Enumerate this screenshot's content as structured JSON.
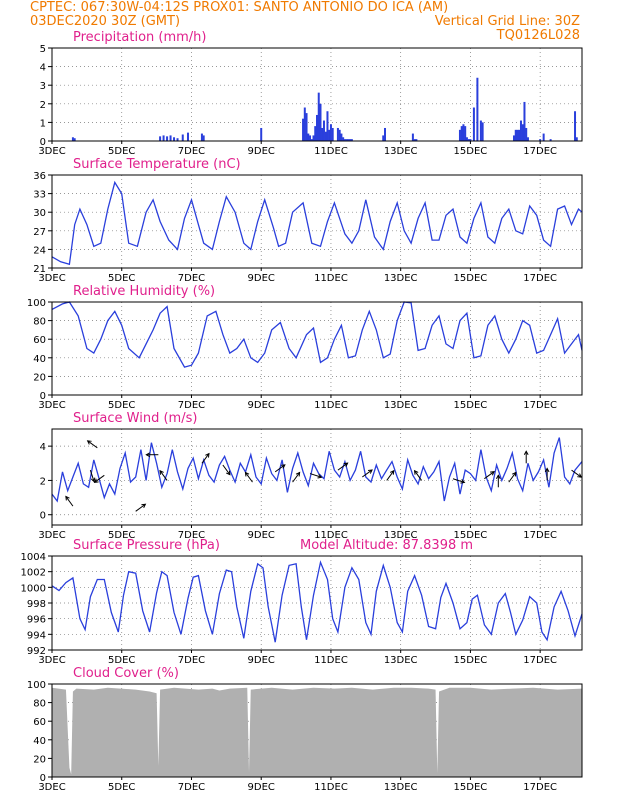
{
  "header": {
    "line1_left": "CPTEC:  067:30W-04:12S  PROX01: SANTO ANTONIO DO ICA (AM)",
    "line2_left": "03DEC2020 30Z (GMT)",
    "line2_right": "Vertical Grid Line: 30Z",
    "line3_right": "TQ0126L028",
    "color": "#f07a00"
  },
  "colors": {
    "series": "#2a3fdc",
    "title": "#e0208c",
    "cloud": "#b0b0b0",
    "arrow": "#000000"
  },
  "x_tick_labels": [
    "3DEC",
    "5DEC",
    "7DEC",
    "9DEC",
    "11DEC",
    "13DEC",
    "15DEC",
    "17DEC"
  ],
  "chart_data": [
    {
      "id": "precip",
      "type": "bar",
      "title": "Precipitation (mm/h)",
      "xlim": [
        0,
        15.2
      ],
      "ylim": [
        0,
        5
      ],
      "yticks": [
        0,
        1,
        2,
        3,
        4,
        5
      ],
      "x": [
        0.6,
        0.65,
        3.1,
        3.2,
        3.3,
        3.4,
        3.5,
        3.6,
        3.75,
        3.9,
        4.3,
        4.35,
        6.0,
        7.2,
        7.25,
        7.3,
        7.35,
        7.4,
        7.45,
        7.5,
        7.55,
        7.6,
        7.65,
        7.7,
        7.75,
        7.8,
        7.85,
        7.9,
        7.95,
        8.0,
        8.05,
        8.2,
        8.25,
        8.3,
        8.35,
        8.4,
        8.45,
        8.5,
        8.55,
        8.6,
        9.5,
        9.55,
        10.35,
        10.4,
        10.45,
        11.7,
        11.75,
        11.8,
        11.85,
        11.9,
        11.95,
        12.0,
        12.1,
        12.2,
        12.3,
        12.35,
        13.25,
        13.3,
        13.35,
        13.4,
        13.45,
        13.5,
        13.55,
        13.6,
        13.65,
        14.0,
        14.1,
        14.3,
        15.0,
        15.05
      ],
      "values": [
        0.2,
        0.15,
        0.25,
        0.3,
        0.25,
        0.3,
        0.2,
        0.15,
        0.35,
        0.45,
        0.4,
        0.3,
        0.7,
        1.2,
        1.8,
        1.5,
        0.4,
        0.3,
        0.1,
        0.3,
        0.8,
        1.4,
        2.6,
        2.0,
        0.7,
        1.1,
        0.5,
        1.6,
        0.6,
        0.9,
        0.7,
        0.7,
        0.6,
        0.4,
        0.2,
        0.1,
        0.1,
        0.1,
        0.1,
        0.1,
        0.3,
        0.7,
        0.4,
        0.1,
        0.1,
        0.6,
        0.8,
        0.9,
        0.8,
        0.2,
        0.1,
        0.1,
        1.8,
        3.4,
        1.1,
        1.0,
        0.3,
        0.6,
        0.6,
        0.6,
        1.1,
        0.9,
        2.1,
        0.7,
        0.2,
        0.1,
        0.4,
        0.1,
        1.6,
        0.2
      ]
    },
    {
      "id": "temp",
      "type": "line",
      "title": "Surface Temperature (nC)",
      "xlim": [
        0,
        15.2
      ],
      "ylim": [
        21,
        36
      ],
      "yticks": [
        21,
        24,
        27,
        30,
        33,
        36
      ],
      "x": [
        0,
        0.25,
        0.5,
        0.65,
        0.8,
        1.0,
        1.2,
        1.4,
        1.6,
        1.8,
        2.0,
        2.2,
        2.45,
        2.7,
        2.9,
        3.1,
        3.35,
        3.6,
        3.8,
        4.0,
        4.2,
        4.35,
        4.6,
        4.8,
        5.0,
        5.25,
        5.5,
        5.7,
        5.9,
        6.1,
        6.35,
        6.5,
        6.7,
        6.9,
        7.2,
        7.45,
        7.7,
        7.9,
        8.1,
        8.4,
        8.6,
        8.8,
        9.0,
        9.25,
        9.5,
        9.7,
        9.9,
        10.1,
        10.3,
        10.5,
        10.7,
        10.9,
        11.1,
        11.3,
        11.5,
        11.7,
        11.9,
        12.1,
        12.3,
        12.5,
        12.7,
        12.9,
        13.1,
        13.3,
        13.5,
        13.7,
        13.9,
        14.1,
        14.3,
        14.5,
        14.7,
        14.9,
        15.1,
        15.2
      ],
      "values": [
        22.8,
        22.0,
        21.6,
        28.0,
        30.5,
        28.0,
        24.5,
        25.0,
        30.5,
        34.8,
        33.0,
        25.0,
        24.5,
        30.0,
        32.0,
        28.5,
        25.5,
        24.0,
        29.0,
        32.0,
        28.0,
        25.0,
        24.0,
        28.5,
        32.5,
        30.0,
        25.0,
        24.0,
        28.5,
        32.0,
        27.5,
        24.5,
        25.0,
        30.0,
        31.5,
        25.0,
        24.5,
        28.5,
        31.5,
        26.5,
        25.0,
        27.0,
        32.0,
        26.0,
        24.0,
        28.5,
        31.5,
        27.0,
        25.0,
        29.0,
        31.5,
        25.5,
        25.5,
        29.5,
        30.5,
        26.0,
        25.0,
        29.0,
        31.5,
        26.0,
        25.0,
        29.0,
        30.5,
        27.0,
        26.5,
        31.0,
        29.5,
        25.5,
        24.5,
        30.5,
        31.0,
        28.0,
        30.5,
        30.0
      ]
    },
    {
      "id": "rh",
      "type": "line",
      "title": "Relative Humidity (%)",
      "xlim": [
        0,
        15.2
      ],
      "ylim": [
        0,
        100
      ],
      "yticks": [
        0,
        20,
        40,
        60,
        80,
        100
      ],
      "x": [
        0,
        0.3,
        0.5,
        0.75,
        1.0,
        1.2,
        1.4,
        1.6,
        1.8,
        2.0,
        2.2,
        2.5,
        2.7,
        2.9,
        3.1,
        3.3,
        3.5,
        3.8,
        4.0,
        4.2,
        4.45,
        4.7,
        4.9,
        5.1,
        5.3,
        5.5,
        5.7,
        5.9,
        6.1,
        6.3,
        6.55,
        6.8,
        7.0,
        7.3,
        7.5,
        7.7,
        7.9,
        8.1,
        8.3,
        8.5,
        8.7,
        8.9,
        9.1,
        9.3,
        9.5,
        9.7,
        9.9,
        10.1,
        10.3,
        10.5,
        10.7,
        10.9,
        11.1,
        11.3,
        11.5,
        11.7,
        11.9,
        12.1,
        12.3,
        12.5,
        12.7,
        12.9,
        13.1,
        13.3,
        13.5,
        13.7,
        13.9,
        14.1,
        14.3,
        14.5,
        14.7,
        14.9,
        15.1,
        15.2
      ],
      "values": [
        92,
        98,
        100,
        85,
        50,
        45,
        60,
        80,
        90,
        75,
        50,
        40,
        55,
        70,
        88,
        95,
        50,
        30,
        32,
        45,
        85,
        90,
        65,
        45,
        50,
        60,
        40,
        35,
        45,
        70,
        78,
        50,
        40,
        65,
        72,
        35,
        40,
        60,
        75,
        40,
        42,
        70,
        90,
        70,
        40,
        44,
        80,
        100,
        99,
        48,
        50,
        75,
        85,
        55,
        50,
        80,
        88,
        40,
        42,
        75,
        85,
        60,
        45,
        60,
        80,
        75,
        45,
        48,
        65,
        82,
        45,
        55,
        65,
        48
      ]
    },
    {
      "id": "wind",
      "type": "line",
      "title": "Surface Wind (m/s)",
      "xlim": [
        0,
        15.2
      ],
      "ylim": [
        0,
        5
      ],
      "yticks": [
        0,
        2,
        4
      ],
      "x": [
        0,
        0.15,
        0.3,
        0.45,
        0.6,
        0.75,
        0.9,
        1.05,
        1.2,
        1.35,
        1.5,
        1.65,
        1.8,
        1.95,
        2.1,
        2.25,
        2.4,
        2.55,
        2.7,
        2.85,
        3.0,
        3.15,
        3.3,
        3.45,
        3.6,
        3.75,
        3.9,
        4.05,
        4.2,
        4.35,
        4.5,
        4.65,
        4.8,
        4.95,
        5.1,
        5.25,
        5.4,
        5.55,
        5.7,
        5.85,
        6.0,
        6.15,
        6.3,
        6.45,
        6.6,
        6.75,
        6.9,
        7.05,
        7.2,
        7.35,
        7.5,
        7.65,
        7.8,
        7.95,
        8.1,
        8.25,
        8.4,
        8.55,
        8.7,
        8.85,
        9.0,
        9.15,
        9.3,
        9.45,
        9.6,
        9.75,
        9.9,
        10.05,
        10.2,
        10.35,
        10.5,
        10.65,
        10.8,
        10.95,
        11.1,
        11.25,
        11.4,
        11.55,
        11.7,
        11.85,
        12.0,
        12.15,
        12.3,
        12.45,
        12.6,
        12.75,
        12.9,
        13.05,
        13.2,
        13.35,
        13.5,
        13.65,
        13.8,
        13.95,
        14.1,
        14.25,
        14.4,
        14.55,
        14.7,
        14.85,
        15.0,
        15.2
      ],
      "values": [
        1.2,
        0.8,
        2.5,
        1.4,
        2.2,
        3.0,
        1.8,
        1.6,
        3.2,
        2.1,
        1.0,
        1.8,
        1.2,
        2.7,
        3.6,
        1.9,
        2.2,
        3.8,
        2.0,
        4.2,
        3.0,
        1.6,
        2.4,
        3.8,
        2.5,
        1.5,
        2.7,
        3.3,
        2.1,
        3.2,
        2.3,
        1.9,
        2.9,
        3.4,
        2.6,
        1.9,
        3.0,
        2.5,
        3.5,
        2.2,
        1.8,
        3.3,
        2.4,
        2.0,
        3.2,
        1.3,
        2.7,
        3.6,
        2.5,
        1.7,
        3.0,
        2.4,
        2.1,
        3.7,
        2.6,
        2.2,
        3.1,
        2.0,
        2.6,
        3.7,
        2.2,
        1.9,
        2.9,
        2.1,
        2.6,
        3.1,
        2.2,
        1.5,
        3.2,
        2.3,
        1.8,
        2.8,
        2.1,
        2.5,
        3.1,
        0.8,
        2.2,
        3.0,
        1.2,
        2.6,
        2.4,
        2.0,
        3.8,
        2.2,
        1.4,
        2.9,
        2.0,
        2.7,
        3.6,
        2.1,
        1.4,
        3.0,
        2.0,
        2.5,
        3.2,
        1.6,
        3.6,
        4.5,
        2.2,
        1.8,
        2.6,
        3.1
      ]
    },
    {
      "id": "pres",
      "type": "line",
      "title": "Surface Pressure (hPa)",
      "annotation": "Model Altitude: 87.8398 m",
      "xlim": [
        0,
        15.2
      ],
      "ylim": [
        992,
        1004
      ],
      "yticks": [
        992,
        994,
        996,
        998,
        1000,
        1002,
        1004
      ],
      "x": [
        0,
        0.2,
        0.4,
        0.6,
        0.8,
        0.95,
        1.1,
        1.3,
        1.5,
        1.7,
        1.9,
        2.05,
        2.2,
        2.4,
        2.6,
        2.8,
        3.0,
        3.15,
        3.3,
        3.5,
        3.7,
        3.9,
        4.05,
        4.2,
        4.4,
        4.6,
        4.8,
        5.0,
        5.15,
        5.3,
        5.5,
        5.7,
        5.9,
        6.05,
        6.2,
        6.4,
        6.6,
        6.8,
        7.0,
        7.15,
        7.3,
        7.5,
        7.7,
        7.9,
        8.05,
        8.2,
        8.4,
        8.6,
        8.8,
        9.0,
        9.15,
        9.3,
        9.5,
        9.7,
        9.9,
        10.05,
        10.2,
        10.4,
        10.6,
        10.8,
        11.0,
        11.15,
        11.3,
        11.5,
        11.7,
        11.9,
        12.05,
        12.2,
        12.4,
        12.6,
        12.8,
        13.0,
        13.15,
        13.3,
        13.5,
        13.7,
        13.9,
        14.05,
        14.2,
        14.4,
        14.6,
        14.8,
        15.0,
        15.2
      ],
      "values": [
        1000.2,
        999.6,
        1000.6,
        1001.2,
        996.0,
        994.6,
        998.8,
        1001.0,
        1001.0,
        996.8,
        994.3,
        999.0,
        1002.0,
        1001.8,
        997.0,
        994.3,
        999.3,
        1002.0,
        1001.5,
        996.8,
        994.0,
        998.6,
        1001.3,
        1001.5,
        997.0,
        994.0,
        999.2,
        1002.2,
        1002.0,
        997.5,
        993.5,
        999.5,
        1003.0,
        1002.5,
        997.5,
        993.0,
        999.0,
        1002.8,
        1003.0,
        997.5,
        993.3,
        999.0,
        1003.2,
        1001.0,
        996.0,
        994.3,
        1000.0,
        1002.5,
        1001.0,
        995.5,
        994.0,
        999.5,
        1002.8,
        1000.0,
        995.5,
        994.3,
        999.5,
        1001.5,
        999.0,
        995.0,
        994.7,
        998.7,
        1000.5,
        998.0,
        994.7,
        995.5,
        998.5,
        999.0,
        995.2,
        994.0,
        998.0,
        999.2,
        996.8,
        994.0,
        995.8,
        998.8,
        998.0,
        994.3,
        993.3,
        997.5,
        999.5,
        997.0,
        993.8,
        996.6
      ]
    },
    {
      "id": "cloud",
      "type": "area",
      "title": "Cloud Cover (%)",
      "xlim": [
        0,
        15.2
      ],
      "ylim": [
        0,
        100
      ],
      "yticks": [
        0,
        20,
        40,
        60,
        80,
        100
      ],
      "x": [
        0,
        0.4,
        0.5,
        0.55,
        0.6,
        0.7,
        1.2,
        1.6,
        2.4,
        2.8,
        3.0,
        3.05,
        3.1,
        3.5,
        4.2,
        4.6,
        4.8,
        5.1,
        5.6,
        5.65,
        5.7,
        6.3,
        6.9,
        7.5,
        8.1,
        8.6,
        9.2,
        9.8,
        10.3,
        10.8,
        11.0,
        11.05,
        11.1,
        11.4,
        12.0,
        12.6,
        13.2,
        13.8,
        14.5,
        15.2
      ],
      "values": [
        96,
        94,
        10,
        3,
        92,
        95,
        94,
        96,
        94,
        92,
        90,
        12,
        94,
        96,
        94,
        95,
        93,
        95,
        96,
        5,
        94,
        96,
        94,
        96,
        95,
        96,
        94,
        96,
        96,
        95,
        94,
        4,
        92,
        96,
        96,
        94,
        95,
        96,
        94,
        95
      ]
    }
  ]
}
